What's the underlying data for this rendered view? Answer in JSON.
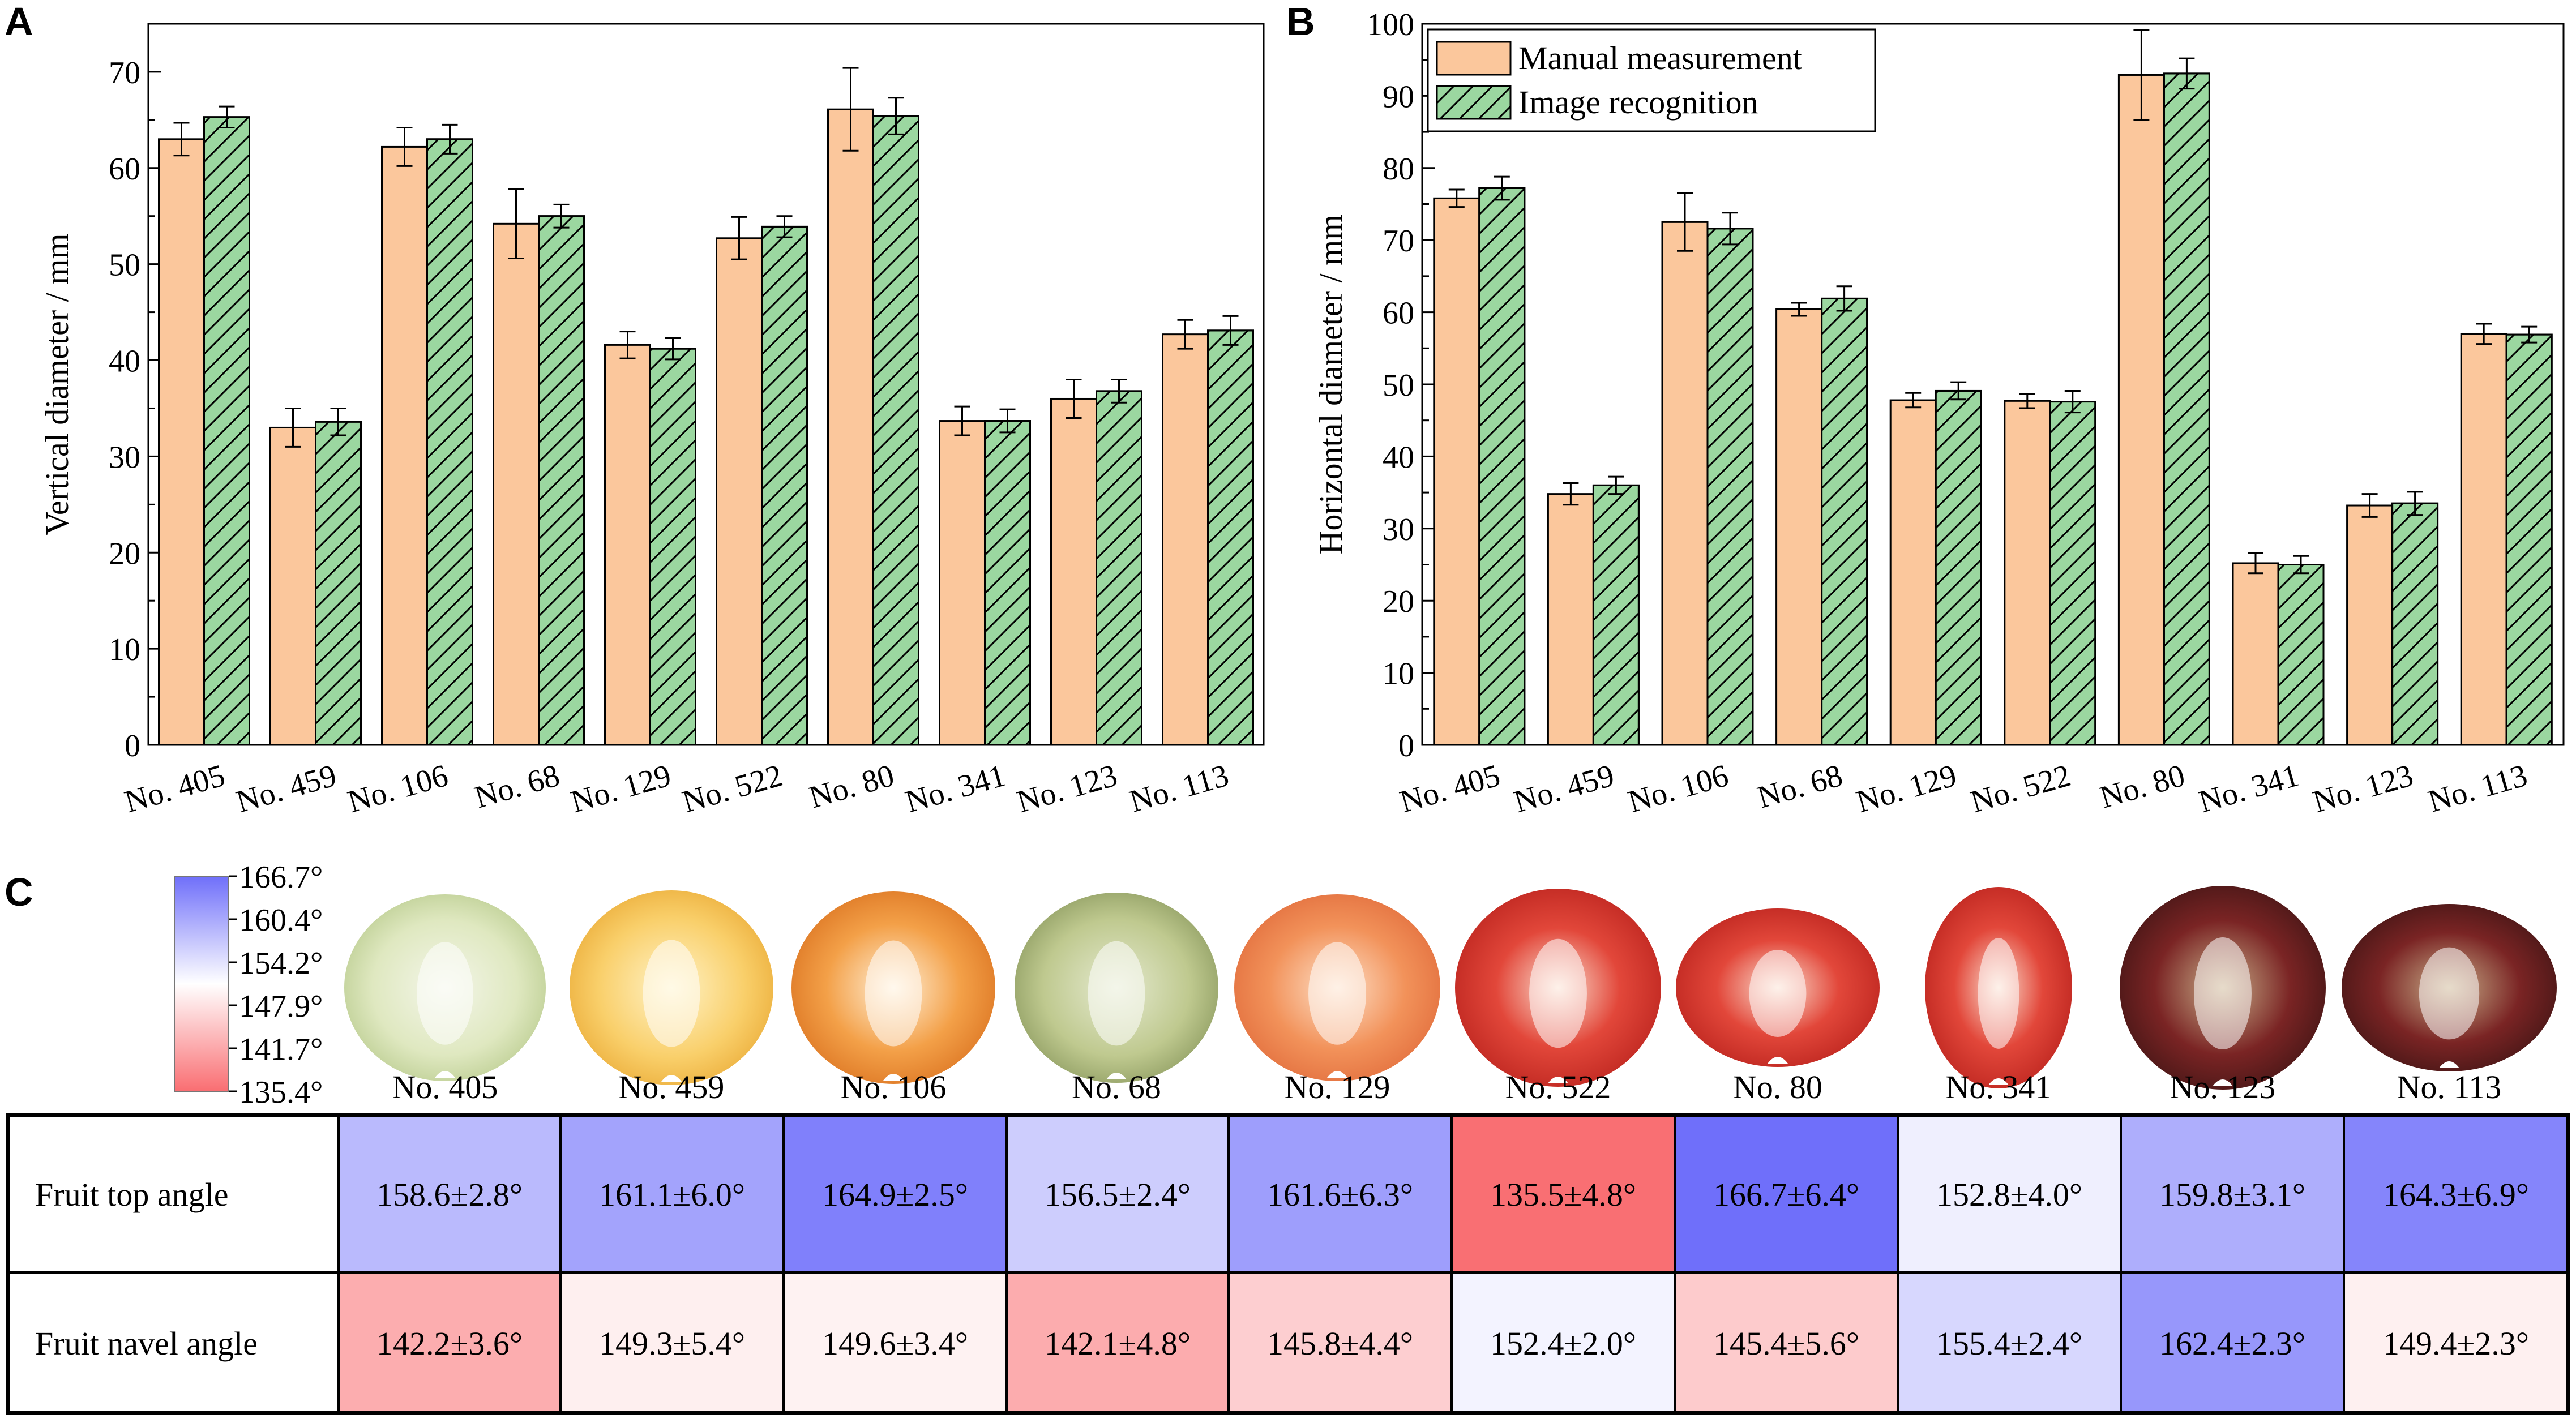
{
  "panel_labels": {
    "a": "A",
    "b": "B",
    "c": "C"
  },
  "colors": {
    "manual": "#fbc79c",
    "image": "#9bd7a0",
    "stroke": "#000000",
    "heat_low": "#f96e72",
    "heat_mid": "#ffffff",
    "heat_high": "#6f6ffa"
  },
  "chart_data": [
    {
      "panel": "A",
      "type": "bar",
      "ylabel": "Vertical diameter / mm",
      "ylim": [
        0,
        75
      ],
      "yticks": [
        0,
        10,
        20,
        30,
        40,
        50,
        60,
        70
      ],
      "categories": [
        "No. 405",
        "No. 459",
        "No. 106",
        "No. 68",
        "No. 129",
        "No. 522",
        "No. 80",
        "No. 341",
        "No. 123",
        "No. 113"
      ],
      "series": [
        {
          "name": "Manual measurement",
          "values": [
            63.0,
            33.0,
            62.2,
            54.2,
            41.6,
            52.7,
            66.1,
            33.7,
            36.0,
            42.7
          ],
          "errors": [
            1.7,
            2.0,
            2.0,
            3.6,
            1.4,
            2.2,
            4.3,
            1.5,
            2.0,
            1.5
          ]
        },
        {
          "name": "Image recognition",
          "values": [
            65.3,
            33.6,
            63.0,
            55.0,
            41.2,
            53.9,
            65.4,
            33.7,
            36.8,
            43.1
          ],
          "errors": [
            1.1,
            1.4,
            1.5,
            1.2,
            1.1,
            1.1,
            1.9,
            1.2,
            1.2,
            1.5
          ]
        }
      ]
    },
    {
      "panel": "B",
      "type": "bar",
      "ylabel": "Horizontal diameter / mm",
      "ylim": [
        0,
        100
      ],
      "yticks": [
        0,
        10,
        20,
        30,
        40,
        50,
        60,
        70,
        80,
        90,
        100
      ],
      "categories": [
        "No. 405",
        "No. 459",
        "No. 106",
        "No. 68",
        "No. 129",
        "No. 522",
        "No. 80",
        "No. 341",
        "No. 123",
        "No. 113"
      ],
      "legend": {
        "placement": "top-left",
        "entries": [
          "Manual measurement",
          "Image recognition"
        ]
      },
      "series": [
        {
          "name": "Manual measurement",
          "values": [
            75.8,
            34.8,
            72.5,
            60.4,
            47.8,
            47.7,
            92.9,
            25.2,
            33.2,
            57.0
          ],
          "errors": [
            1.2,
            1.5,
            4.0,
            0.9,
            1.0,
            1.0,
            6.2,
            1.4,
            1.6,
            1.4
          ]
        },
        {
          "name": "Image recognition",
          "values": [
            77.2,
            36.0,
            71.6,
            61.9,
            49.1,
            47.6,
            93.1,
            25.0,
            33.5,
            56.9
          ],
          "errors": [
            1.6,
            1.2,
            2.2,
            1.7,
            1.2,
            1.5,
            2.1,
            1.2,
            1.6,
            1.1
          ]
        }
      ]
    },
    {
      "panel": "C",
      "type": "heatmap",
      "colorbar_ticks": [
        "166.7°",
        "160.4°",
        "154.2°",
        "147.9°",
        "141.7°",
        "135.4°"
      ],
      "colorbar_range": [
        135.4,
        166.7
      ],
      "fruit_labels": [
        "No. 405",
        "No. 459",
        "No. 106",
        "No. 68",
        "No. 129",
        "No. 522",
        "No. 80",
        "No. 341",
        "No. 123",
        "No. 113"
      ],
      "rows": [
        {
          "label": "Fruit top angle",
          "values": [
            158.6,
            161.1,
            164.9,
            156.5,
            161.6,
            135.5,
            166.7,
            152.8,
            159.8,
            164.3
          ],
          "cells": [
            "158.6±2.8°",
            "161.1±6.0°",
            "164.9±2.5°",
            "156.5±2.4°",
            "161.6±6.3°",
            "135.5±4.8°",
            "166.7±6.4°",
            "152.8±4.0°",
            "159.8±3.1°",
            "164.3±6.9°"
          ]
        },
        {
          "label": "Fruit navel angle",
          "values": [
            142.2,
            149.3,
            149.6,
            142.1,
            145.8,
            152.4,
            145.4,
            155.4,
            162.4,
            149.4
          ],
          "cells": [
            "142.2±3.6°",
            "149.3±5.4°",
            "149.6±3.4°",
            "142.1±4.8°",
            "145.8±4.4°",
            "152.4±2.0°",
            "145.4±5.6°",
            "155.4±2.4°",
            "162.4±2.3°",
            "149.4±2.3°"
          ]
        }
      ]
    }
  ]
}
